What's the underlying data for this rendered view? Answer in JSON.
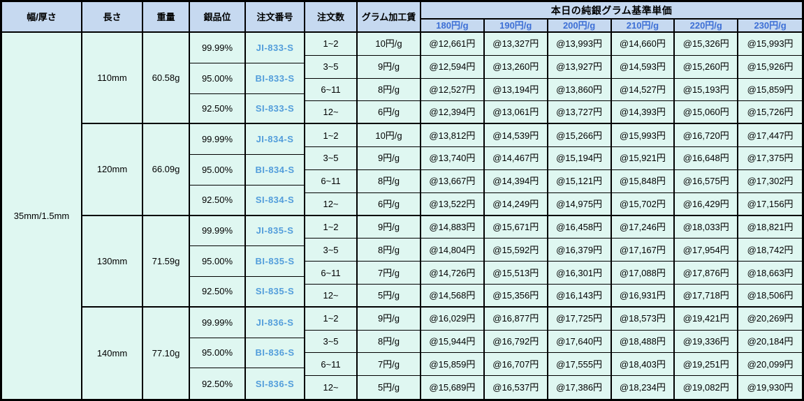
{
  "colors": {
    "header_bg": "#C6D9F0",
    "body_bg": "#DFF7F1",
    "rate_header_blue": "#3E70D6",
    "order_number_blue": "#529DDB"
  },
  "header": {
    "width_thickness": "幅/厚さ",
    "length": "長さ",
    "weight": "重量",
    "purity": "銀品位",
    "order_no": "注文番号",
    "order_qty": "注文数",
    "fee": "グラム加工賃",
    "price_group": "本日の純銀グラム基準単価",
    "price_cols": [
      "180円/g",
      "190円/g",
      "200円/g",
      "210円/g",
      "220円/g",
      "230円/g"
    ]
  },
  "width_thickness_value": "35mm/1.5mm",
  "groups": [
    {
      "length": "110mm",
      "weight": "60.58g",
      "purities": [
        {
          "purity": "99.99%",
          "order_no": "JI-833-S"
        },
        {
          "purity": "95.00%",
          "order_no": "BI-833-S"
        },
        {
          "purity": "92.50%",
          "order_no": "SI-833-S"
        }
      ],
      "rows": [
        {
          "qty": "1~2",
          "fee": "10円/g",
          "prices": [
            "@12,661円",
            "@13,327円",
            "@13,993円",
            "@14,660円",
            "@15,326円",
            "@15,993円"
          ]
        },
        {
          "qty": "3~5",
          "fee": "9円/g",
          "prices": [
            "@12,594円",
            "@13,260円",
            "@13,927円",
            "@14,593円",
            "@15,260円",
            "@15,926円"
          ]
        },
        {
          "qty": "6~11",
          "fee": "8円/g",
          "prices": [
            "@12,527円",
            "@13,194円",
            "@13,860円",
            "@14,527円",
            "@15,193円",
            "@15,859円"
          ]
        },
        {
          "qty": "12~",
          "fee": "6円/g",
          "prices": [
            "@12,394円",
            "@13,061円",
            "@13,727円",
            "@14,393円",
            "@15,060円",
            "@15,726円"
          ]
        }
      ]
    },
    {
      "length": "120mm",
      "weight": "66.09g",
      "purities": [
        {
          "purity": "99.99%",
          "order_no": "JI-834-S"
        },
        {
          "purity": "95.00%",
          "order_no": "BI-834-S"
        },
        {
          "purity": "92.50%",
          "order_no": "SI-834-S"
        }
      ],
      "rows": [
        {
          "qty": "1~2",
          "fee": "10円/g",
          "prices": [
            "@13,812円",
            "@14,539円",
            "@15,266円",
            "@15,993円",
            "@16,720円",
            "@17,447円"
          ]
        },
        {
          "qty": "3~5",
          "fee": "9円/g",
          "prices": [
            "@13,740円",
            "@14,467円",
            "@15,194円",
            "@15,921円",
            "@16,648円",
            "@17,375円"
          ]
        },
        {
          "qty": "6~11",
          "fee": "8円/g",
          "prices": [
            "@13,667円",
            "@14,394円",
            "@15,121円",
            "@15,848円",
            "@16,575円",
            "@17,302円"
          ]
        },
        {
          "qty": "12~",
          "fee": "6円/g",
          "prices": [
            "@13,522円",
            "@14,249円",
            "@14,975円",
            "@15,702円",
            "@16,429円",
            "@17,156円"
          ]
        }
      ]
    },
    {
      "length": "130mm",
      "weight": "71.59g",
      "purities": [
        {
          "purity": "99.99%",
          "order_no": "JI-835-S"
        },
        {
          "purity": "95.00%",
          "order_no": "BI-835-S"
        },
        {
          "purity": "92.50%",
          "order_no": "SI-835-S"
        }
      ],
      "rows": [
        {
          "qty": "1~2",
          "fee": "9円/g",
          "prices": [
            "@14,883円",
            "@15,671円",
            "@16,458円",
            "@17,246円",
            "@18,033円",
            "@18,821円"
          ]
        },
        {
          "qty": "3~5",
          "fee": "8円/g",
          "prices": [
            "@14,804円",
            "@15,592円",
            "@16,379円",
            "@17,167円",
            "@17,954円",
            "@18,742円"
          ]
        },
        {
          "qty": "6~11",
          "fee": "7円/g",
          "prices": [
            "@14,726円",
            "@15,513円",
            "@16,301円",
            "@17,088円",
            "@17,876円",
            "@18,663円"
          ]
        },
        {
          "qty": "12~",
          "fee": "5円/g",
          "prices": [
            "@14,568円",
            "@15,356円",
            "@16,143円",
            "@16,931円",
            "@17,718円",
            "@18,506円"
          ]
        }
      ]
    },
    {
      "length": "140mm",
      "weight": "77.10g",
      "purities": [
        {
          "purity": "99.99%",
          "order_no": "JI-836-S"
        },
        {
          "purity": "95.00%",
          "order_no": "BI-836-S"
        },
        {
          "purity": "92.50%",
          "order_no": "SI-836-S"
        }
      ],
      "rows": [
        {
          "qty": "1~2",
          "fee": "9円/g",
          "prices": [
            "@16,029円",
            "@16,877円",
            "@17,725円",
            "@18,573円",
            "@19,421円",
            "@20,269円"
          ]
        },
        {
          "qty": "3~5",
          "fee": "8円/g",
          "prices": [
            "@15,944円",
            "@16,792円",
            "@17,640円",
            "@18,488円",
            "@19,336円",
            "@20,184円"
          ]
        },
        {
          "qty": "6~11",
          "fee": "7円/g",
          "prices": [
            "@15,859円",
            "@16,707円",
            "@17,555円",
            "@18,403円",
            "@19,251円",
            "@20,099円"
          ]
        },
        {
          "qty": "12~",
          "fee": "5円/g",
          "prices": [
            "@15,689円",
            "@16,537円",
            "@17,386円",
            "@18,234円",
            "@19,082円",
            "@19,930円"
          ]
        }
      ]
    }
  ]
}
